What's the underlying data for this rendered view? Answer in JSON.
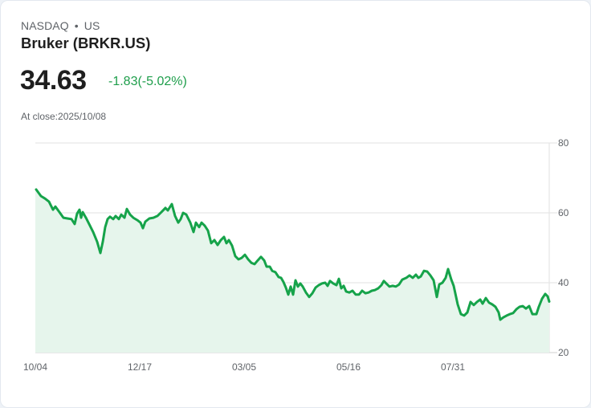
{
  "header": {
    "exchange": "NASDAQ",
    "separator": "•",
    "country": "US",
    "title": "Bruker (BRKR.US)",
    "price": "34.63",
    "change": "-1.83(-5.02%)",
    "close_label": "At close:2025/10/08"
  },
  "colors": {
    "line": "#16a34a",
    "fill": "#e6f5ec",
    "grid": "#e2e2e2",
    "change": "#1e9e4b"
  },
  "chart_data": {
    "type": "area",
    "title": "Bruker (BRKR.US)",
    "xlabel": "",
    "ylabel": "",
    "ylim": [
      20,
      80
    ],
    "yticks": [
      80,
      60,
      40,
      20
    ],
    "xtick_labels": [
      "10/04",
      "12/17",
      "03/05",
      "05/16",
      "07/31"
    ],
    "grid": true,
    "legend": null,
    "series": [
      {
        "name": "BRKR.US",
        "points": [
          [
            44,
            66.7
          ],
          [
            50,
            64.8
          ],
          [
            55,
            64.1
          ],
          [
            60,
            63.2
          ],
          [
            65,
            60.9
          ],
          [
            68,
            61.8
          ],
          [
            73,
            60.2
          ],
          [
            78,
            58.6
          ],
          [
            83,
            58.4
          ],
          [
            88,
            58.2
          ],
          [
            92,
            56.8
          ],
          [
            95,
            59.8
          ],
          [
            98,
            60.9
          ],
          [
            100,
            58.6
          ],
          [
            102,
            60.2
          ],
          [
            106,
            58.6
          ],
          [
            110,
            56.8
          ],
          [
            115,
            54.5
          ],
          [
            120,
            51.7
          ],
          [
            124,
            48.5
          ],
          [
            127,
            51.7
          ],
          [
            130,
            55.9
          ],
          [
            133,
            58.2
          ],
          [
            136,
            58.9
          ],
          [
            140,
            58.2
          ],
          [
            143,
            59.1
          ],
          [
            147,
            58.2
          ],
          [
            150,
            59.5
          ],
          [
            154,
            58.6
          ],
          [
            157,
            61.1
          ],
          [
            161,
            59.5
          ],
          [
            165,
            58.6
          ],
          [
            170,
            57.9
          ],
          [
            174,
            57.2
          ],
          [
            177,
            55.6
          ],
          [
            180,
            57.5
          ],
          [
            185,
            58.4
          ],
          [
            190,
            58.6
          ],
          [
            195,
            59.1
          ],
          [
            200,
            60.2
          ],
          [
            205,
            61.4
          ],
          [
            208,
            60.7
          ],
          [
            213,
            62.5
          ],
          [
            217,
            59.1
          ],
          [
            221,
            57.2
          ],
          [
            224,
            58.2
          ],
          [
            227,
            60.0
          ],
          [
            231,
            59.5
          ],
          [
            236,
            57.2
          ],
          [
            240,
            54.5
          ],
          [
            243,
            57.2
          ],
          [
            247,
            55.9
          ],
          [
            250,
            57.2
          ],
          [
            254,
            56.3
          ],
          [
            258,
            54.9
          ],
          [
            262,
            51.3
          ],
          [
            266,
            52.2
          ],
          [
            270,
            50.8
          ],
          [
            274,
            52.2
          ],
          [
            278,
            53.1
          ],
          [
            281,
            51.3
          ],
          [
            284,
            52.2
          ],
          [
            288,
            50.6
          ],
          [
            292,
            47.6
          ],
          [
            296,
            46.7
          ],
          [
            300,
            47.1
          ],
          [
            304,
            48.0
          ],
          [
            308,
            46.7
          ],
          [
            312,
            45.7
          ],
          [
            316,
            45.3
          ],
          [
            320,
            46.4
          ],
          [
            324,
            47.4
          ],
          [
            328,
            46.4
          ],
          [
            331,
            44.6
          ],
          [
            335,
            44.6
          ],
          [
            338,
            43.4
          ],
          [
            342,
            43.0
          ],
          [
            346,
            41.6
          ],
          [
            349,
            41.4
          ],
          [
            352,
            40.2
          ],
          [
            355,
            38.6
          ],
          [
            358,
            36.6
          ],
          [
            361,
            38.9
          ],
          [
            364,
            36.6
          ],
          [
            367,
            40.7
          ],
          [
            370,
            38.9
          ],
          [
            373,
            39.8
          ],
          [
            376,
            38.9
          ],
          [
            380,
            37.2
          ],
          [
            384,
            35.9
          ],
          [
            388,
            37.0
          ],
          [
            392,
            38.6
          ],
          [
            396,
            39.3
          ],
          [
            400,
            39.8
          ],
          [
            404,
            40.0
          ],
          [
            407,
            39.1
          ],
          [
            410,
            40.5
          ],
          [
            414,
            39.8
          ],
          [
            418,
            39.3
          ],
          [
            421,
            41.1
          ],
          [
            424,
            38.4
          ],
          [
            427,
            39.1
          ],
          [
            430,
            37.5
          ],
          [
            434,
            37.2
          ],
          [
            438,
            37.7
          ],
          [
            442,
            36.6
          ],
          [
            446,
            36.6
          ],
          [
            450,
            37.7
          ],
          [
            454,
            37.0
          ],
          [
            458,
            37.2
          ],
          [
            462,
            37.7
          ],
          [
            466,
            37.9
          ],
          [
            470,
            38.4
          ],
          [
            474,
            39.3
          ],
          [
            477,
            40.5
          ],
          [
            480,
            39.8
          ],
          [
            484,
            38.9
          ],
          [
            488,
            39.1
          ],
          [
            492,
            38.9
          ],
          [
            496,
            39.5
          ],
          [
            500,
            40.9
          ],
          [
            505,
            41.4
          ],
          [
            509,
            42.1
          ],
          [
            513,
            41.4
          ],
          [
            517,
            42.3
          ],
          [
            520,
            41.4
          ],
          [
            523,
            41.8
          ],
          [
            527,
            43.4
          ],
          [
            531,
            43.2
          ],
          [
            535,
            42.1
          ],
          [
            539,
            40.7
          ],
          [
            543,
            35.9
          ],
          [
            546,
            39.5
          ],
          [
            550,
            40.0
          ],
          [
            554,
            41.4
          ],
          [
            557,
            43.9
          ],
          [
            561,
            40.9
          ],
          [
            564,
            39.1
          ],
          [
            569,
            33.8
          ],
          [
            573,
            31.0
          ],
          [
            577,
            30.6
          ],
          [
            581,
            31.5
          ],
          [
            585,
            34.5
          ],
          [
            589,
            33.6
          ],
          [
            593,
            34.5
          ],
          [
            597,
            35.2
          ],
          [
            600,
            34.0
          ],
          [
            604,
            35.6
          ],
          [
            608,
            34.3
          ],
          [
            612,
            33.8
          ],
          [
            616,
            33.1
          ],
          [
            620,
            31.5
          ],
          [
            622,
            29.4
          ],
          [
            626,
            30.1
          ],
          [
            630,
            30.6
          ],
          [
            634,
            31.0
          ],
          [
            638,
            31.3
          ],
          [
            642,
            32.4
          ],
          [
            646,
            33.1
          ],
          [
            650,
            33.3
          ],
          [
            654,
            32.6
          ],
          [
            658,
            33.3
          ],
          [
            662,
            31.0
          ],
          [
            667,
            31.0
          ],
          [
            670,
            33.1
          ],
          [
            674,
            35.4
          ],
          [
            678,
            36.8
          ],
          [
            681,
            36.1
          ],
          [
            683,
            34.6
          ]
        ]
      }
    ]
  }
}
